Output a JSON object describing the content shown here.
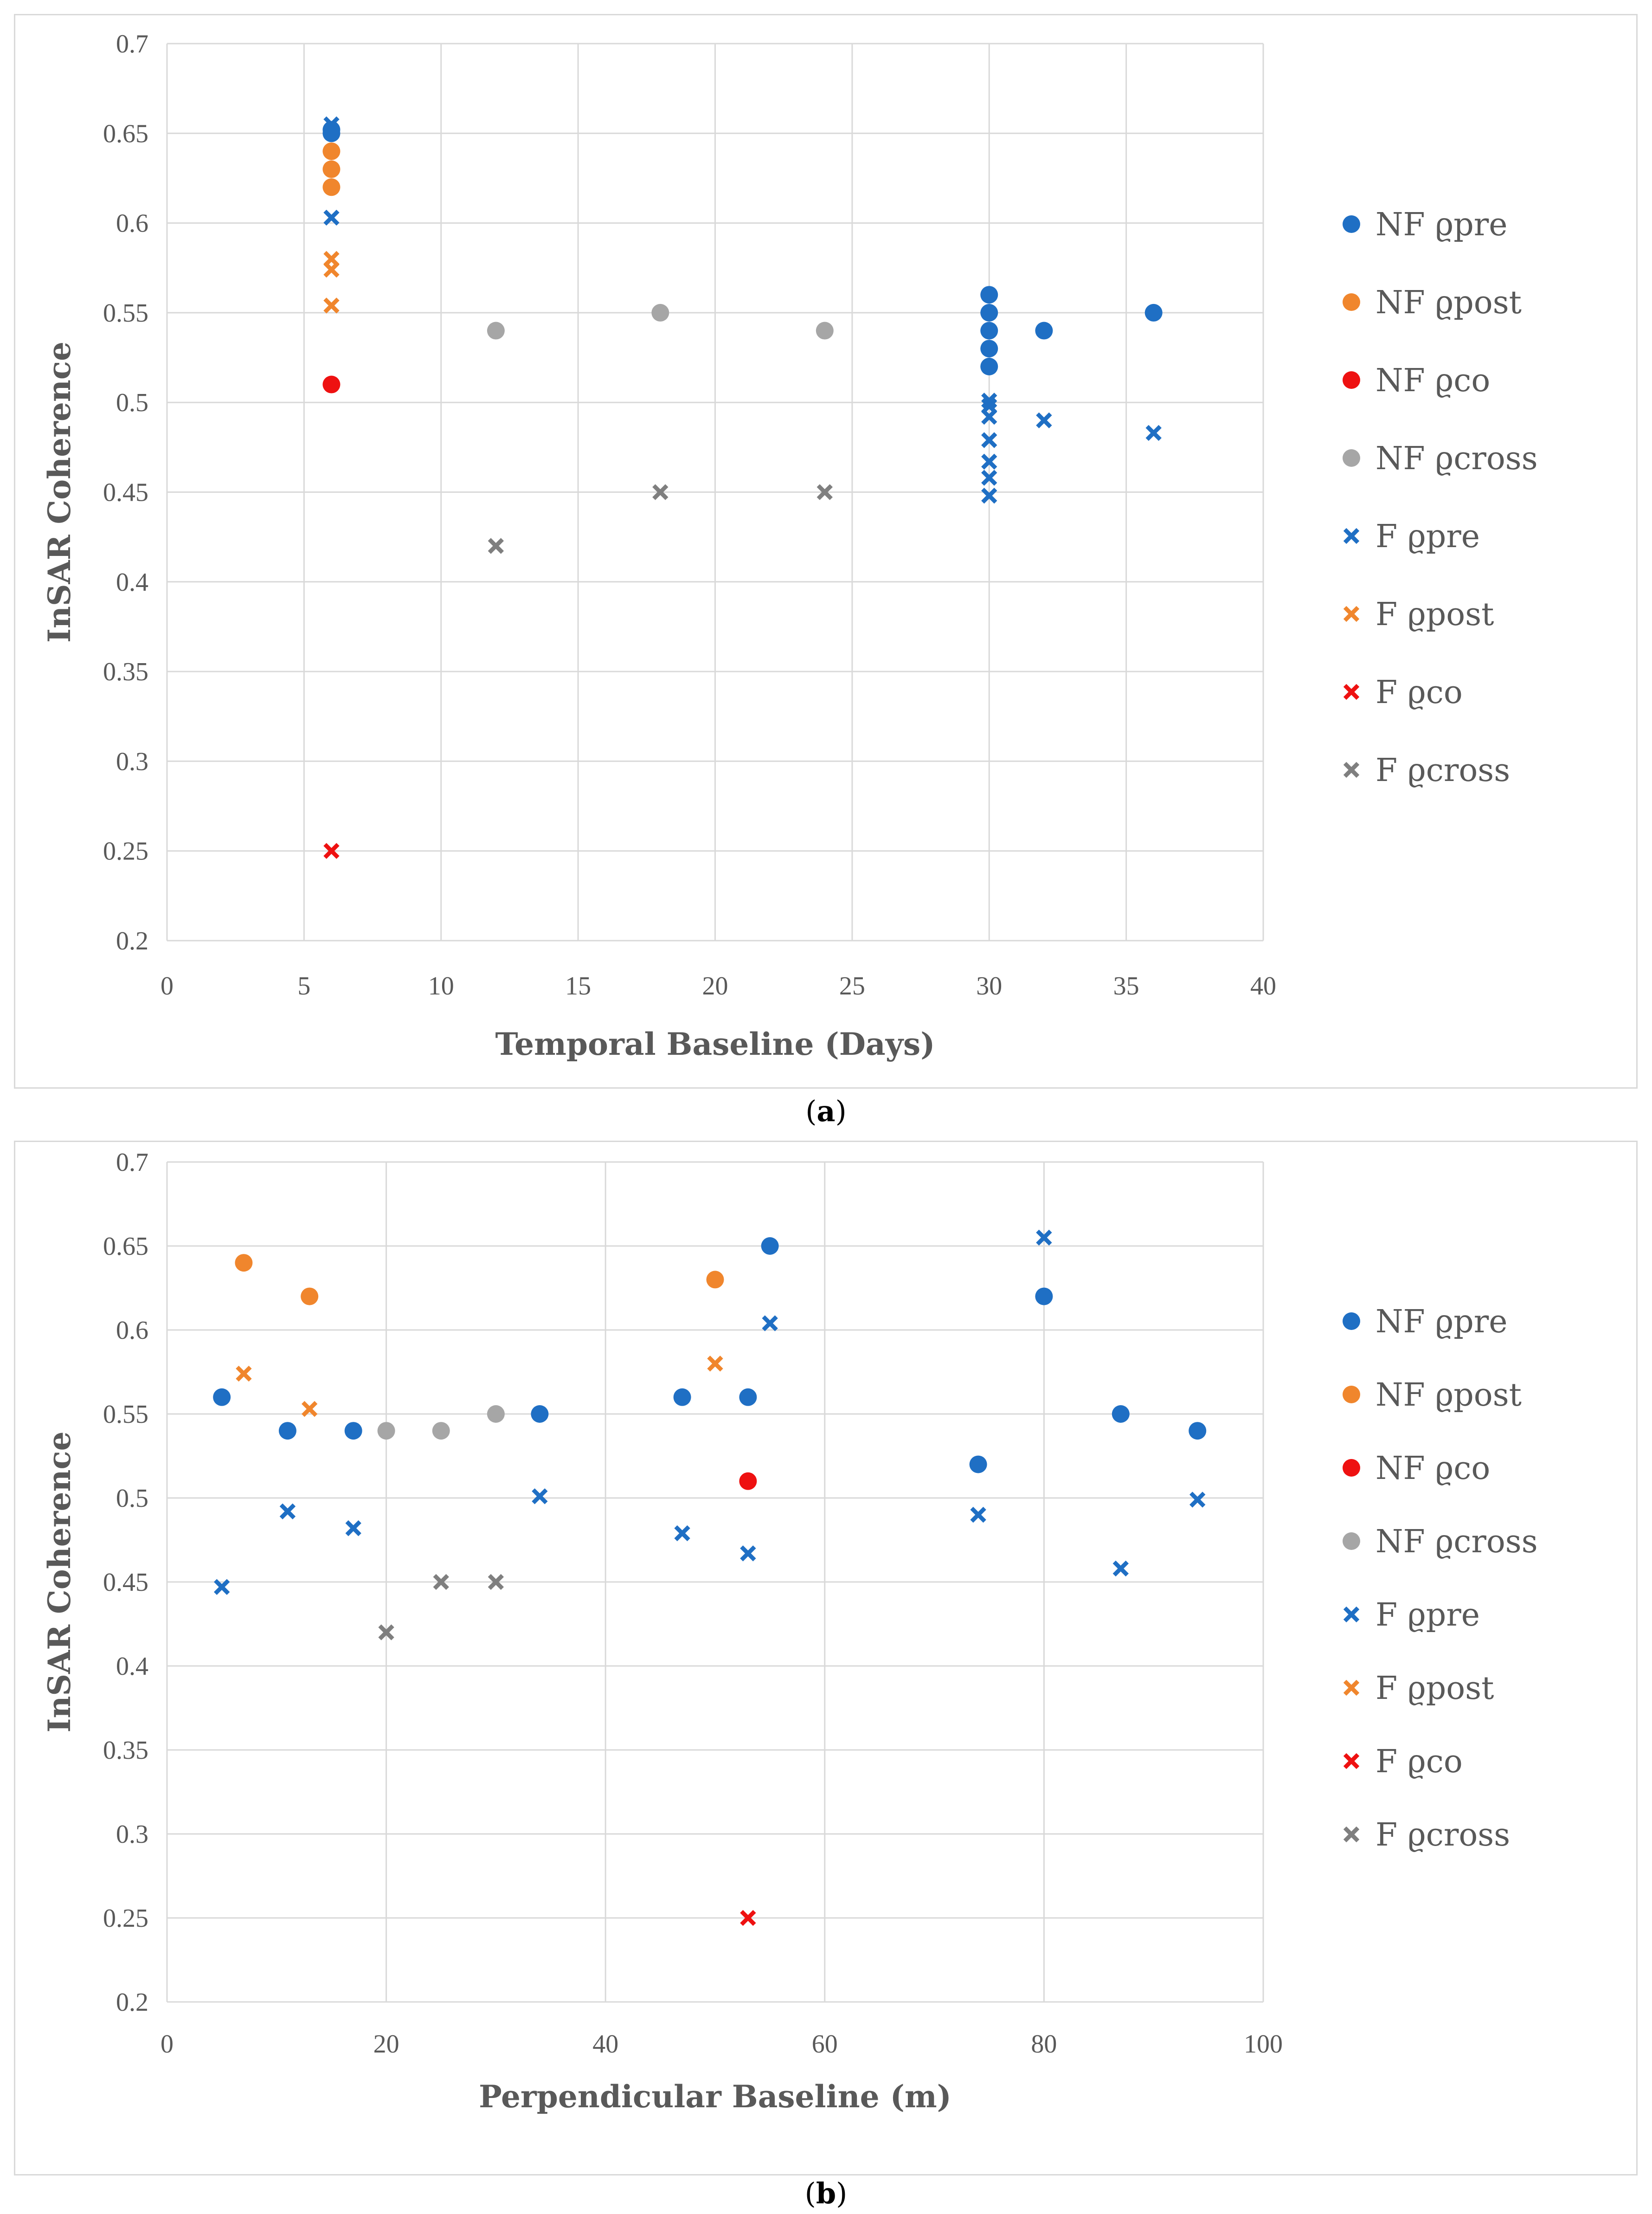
{
  "colors": {
    "blue": "#1f6fc4",
    "orange": "#f0862d",
    "red": "#ee1111",
    "gray": "#a6a6a6",
    "darkgray": "#7f7f7f",
    "grid": "#d9d9d9",
    "text": "#595959"
  },
  "chart_data": [
    {
      "type": "scatter",
      "panel_label": "a",
      "title": "",
      "xlabel": "Temporal Baseline  (Days)",
      "ylabel": "InSAR Coherence",
      "xlim": [
        0,
        40
      ],
      "ylim": [
        0.2,
        0.7
      ],
      "xticks": [
        "0",
        "5",
        "10",
        "15",
        "20",
        "25",
        "30",
        "35",
        "40"
      ],
      "yticks": [
        "0.2",
        "0.25",
        "0.3",
        "0.35",
        "0.4",
        "0.45",
        "0.5",
        "0.55",
        "0.6",
        "0.65",
        "0.7"
      ],
      "grid": true,
      "legend_position": "right",
      "series": [
        {
          "name": "NF ϱpre",
          "marker": "circle",
          "color": "blue",
          "points": [
            [
              6,
              0.65
            ],
            [
              6,
              0.652
            ],
            [
              30,
              0.56
            ],
            [
              30,
              0.55
            ],
            [
              30,
              0.54
            ],
            [
              30,
              0.53
            ],
            [
              30,
              0.52
            ],
            [
              32,
              0.54
            ],
            [
              36,
              0.55
            ]
          ]
        },
        {
          "name": "NF ϱpost",
          "marker": "circle",
          "color": "orange",
          "points": [
            [
              6,
              0.64
            ],
            [
              6,
              0.63
            ],
            [
              6,
              0.62
            ]
          ]
        },
        {
          "name": "NF ϱco",
          "marker": "circle",
          "color": "red",
          "points": [
            [
              6,
              0.51
            ]
          ]
        },
        {
          "name": "NF ϱcross",
          "marker": "circle",
          "color": "gray",
          "points": [
            [
              12,
              0.54
            ],
            [
              18,
              0.55
            ],
            [
              24,
              0.54
            ]
          ]
        },
        {
          "name": "F ϱpre",
          "marker": "x",
          "color": "blue",
          "points": [
            [
              6,
              0.655
            ],
            [
              6,
              0.603
            ],
            [
              30,
              0.501
            ],
            [
              30,
              0.498
            ],
            [
              30,
              0.492
            ],
            [
              30,
              0.479
            ],
            [
              30,
              0.467
            ],
            [
              30,
              0.458
            ],
            [
              30,
              0.448
            ],
            [
              32,
              0.49
            ],
            [
              36,
              0.483
            ]
          ]
        },
        {
          "name": "F ϱpost",
          "marker": "x",
          "color": "orange",
          "points": [
            [
              6,
              0.58
            ],
            [
              6,
              0.574
            ],
            [
              6,
              0.554
            ]
          ]
        },
        {
          "name": "F ϱco",
          "marker": "x",
          "color": "red",
          "points": [
            [
              6,
              0.25
            ]
          ]
        },
        {
          "name": "F ϱcross",
          "marker": "x",
          "color": "darkgray",
          "points": [
            [
              12,
              0.42
            ],
            [
              18,
              0.45
            ],
            [
              24,
              0.45
            ]
          ]
        }
      ]
    },
    {
      "type": "scatter",
      "panel_label": "b",
      "title": "",
      "xlabel": "Perpendicular Baseline  (m)",
      "ylabel": "InSAR Coherence",
      "xlim": [
        0,
        100
      ],
      "ylim": [
        0.2,
        0.7
      ],
      "xticks": [
        "0",
        "20",
        "40",
        "60",
        "80",
        "100"
      ],
      "yticks": [
        "0.2",
        "0.25",
        "0.3",
        "0.35",
        "0.4",
        "0.45",
        "0.5",
        "0.55",
        "0.6",
        "0.65",
        "0.7"
      ],
      "grid": true,
      "legend_position": "right",
      "series": [
        {
          "name": "NF ϱpre",
          "marker": "circle",
          "color": "blue",
          "points": [
            [
              5,
              0.56
            ],
            [
              11,
              0.54
            ],
            [
              17,
              0.54
            ],
            [
              34,
              0.55
            ],
            [
              47,
              0.56
            ],
            [
              53,
              0.56
            ],
            [
              55,
              0.65
            ],
            [
              74,
              0.52
            ],
            [
              80,
              0.62
            ],
            [
              87,
              0.55
            ],
            [
              94,
              0.54
            ]
          ]
        },
        {
          "name": "NF ϱpost",
          "marker": "circle",
          "color": "orange",
          "points": [
            [
              7,
              0.64
            ],
            [
              13,
              0.62
            ],
            [
              50,
              0.63
            ]
          ]
        },
        {
          "name": "NF ϱco",
          "marker": "circle",
          "color": "red",
          "points": [
            [
              53,
              0.51
            ]
          ]
        },
        {
          "name": "NF ϱcross",
          "marker": "circle",
          "color": "gray",
          "points": [
            [
              20,
              0.54
            ],
            [
              25,
              0.54
            ],
            [
              30,
              0.55
            ]
          ]
        },
        {
          "name": "F ϱpre",
          "marker": "x",
          "color": "blue",
          "points": [
            [
              5,
              0.447
            ],
            [
              11,
              0.492
            ],
            [
              17,
              0.482
            ],
            [
              34,
              0.501
            ],
            [
              47,
              0.479
            ],
            [
              53,
              0.467
            ],
            [
              55,
              0.604
            ],
            [
              74,
              0.49
            ],
            [
              80,
              0.655
            ],
            [
              87,
              0.458
            ],
            [
              94,
              0.499
            ]
          ]
        },
        {
          "name": "F ϱpost",
          "marker": "x",
          "color": "orange",
          "points": [
            [
              7,
              0.574
            ],
            [
              13,
              0.553
            ],
            [
              50,
              0.58
            ]
          ]
        },
        {
          "name": "F ϱco",
          "marker": "x",
          "color": "red",
          "points": [
            [
              53,
              0.25
            ]
          ]
        },
        {
          "name": "F ϱcross",
          "marker": "x",
          "color": "darkgray",
          "points": [
            [
              20,
              0.42
            ],
            [
              25,
              0.45
            ],
            [
              30,
              0.45
            ]
          ]
        }
      ]
    }
  ]
}
